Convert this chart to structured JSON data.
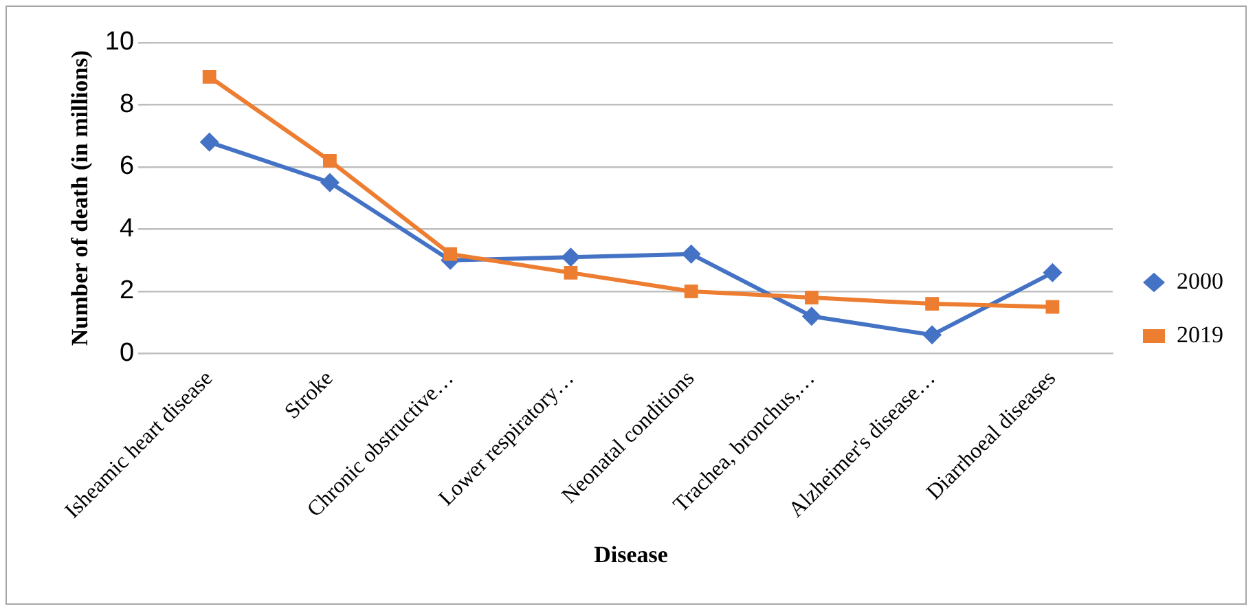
{
  "chart_data": {
    "type": "line",
    "xlabel": "Disease",
    "ylabel": "Number of death (in millions)",
    "categories": [
      "Isheamic heart disease",
      "Stroke",
      "Chronic obstructive…",
      "Lower respiratory…",
      "Neonatal conditions",
      "Trachea, bronchus,…",
      "Alzheimer's disease…",
      "Diarrhoeal diseases"
    ],
    "series": [
      {
        "name": "2000",
        "color": "#4472c4",
        "marker": "diamond",
        "values": [
          6.8,
          5.5,
          3.0,
          3.1,
          3.2,
          1.2,
          0.6,
          2.6
        ]
      },
      {
        "name": "2019",
        "color": "#ed7d31",
        "marker": "square",
        "values": [
          8.9,
          6.2,
          3.2,
          2.6,
          2.0,
          1.8,
          1.6,
          1.5
        ]
      }
    ],
    "ylim": [
      0,
      10
    ],
    "yticks": [
      0,
      2,
      4,
      6,
      8,
      10
    ],
    "grid": "y",
    "legend": "right",
    "line_style": "solid"
  }
}
